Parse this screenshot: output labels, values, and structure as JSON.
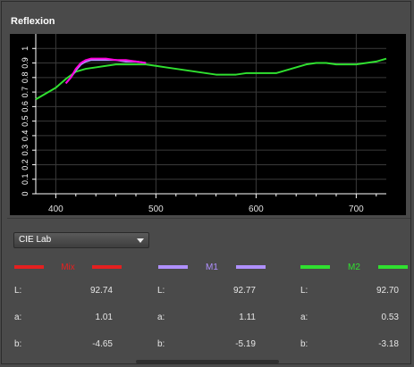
{
  "panel": {
    "title": "Reflexion"
  },
  "chart_data": {
    "type": "line",
    "title": "",
    "xlabel": "",
    "ylabel": "",
    "xlim": [
      380,
      730
    ],
    "ylim": [
      0,
      1.1
    ],
    "x_ticks": [
      400,
      500,
      600,
      700
    ],
    "y_ticks": [
      0,
      0.1,
      0.2,
      0.3,
      0.4,
      0.5,
      0.6,
      0.7,
      0.8,
      0.9,
      1
    ],
    "y_tick_labels": [
      "0",
      "0.1",
      "0.2",
      "0.3",
      "0.4",
      "0.5",
      "0.6",
      "0.7",
      "0.8",
      "0.9",
      "1"
    ],
    "grid": true,
    "series": [
      {
        "name": "Mix",
        "color": "#ff00dd",
        "x": [
          410,
          415,
          420,
          425,
          430,
          435,
          440,
          450,
          460,
          470,
          480,
          490
        ],
        "y": [
          0.76,
          0.8,
          0.86,
          0.9,
          0.92,
          0.93,
          0.93,
          0.93,
          0.92,
          0.92,
          0.91,
          0.9
        ]
      },
      {
        "name": "M1",
        "color": "#b090ff",
        "x": [
          410,
          415,
          420,
          425,
          430,
          435,
          440,
          450,
          460,
          470,
          480,
          490
        ],
        "y": [
          0.76,
          0.8,
          0.85,
          0.89,
          0.91,
          0.92,
          0.92,
          0.92,
          0.92,
          0.91,
          0.91,
          0.9
        ]
      },
      {
        "name": "M2",
        "color": "#30e030",
        "x": [
          380,
          390,
          400,
          410,
          420,
          430,
          440,
          450,
          460,
          470,
          480,
          490,
          500,
          510,
          520,
          530,
          540,
          550,
          560,
          570,
          580,
          590,
          600,
          610,
          620,
          630,
          640,
          650,
          660,
          670,
          680,
          690,
          700,
          710,
          720,
          730
        ],
        "y": [
          0.65,
          0.69,
          0.73,
          0.79,
          0.84,
          0.86,
          0.87,
          0.88,
          0.89,
          0.89,
          0.89,
          0.89,
          0.88,
          0.87,
          0.86,
          0.85,
          0.84,
          0.83,
          0.82,
          0.82,
          0.82,
          0.83,
          0.83,
          0.83,
          0.83,
          0.85,
          0.87,
          0.89,
          0.9,
          0.9,
          0.89,
          0.89,
          0.89,
          0.9,
          0.91,
          0.93
        ]
      }
    ]
  },
  "colorspace_select": {
    "value": "CIE Lab"
  },
  "samples": [
    {
      "name": "Mix",
      "color": "#e52020",
      "L": "92.74",
      "a": "1.01",
      "b": "-4.65"
    },
    {
      "name": "M1",
      "color": "#b090ff",
      "L": "92.77",
      "a": "1.11",
      "b": "-5.19"
    },
    {
      "name": "M2",
      "color": "#30e030",
      "L": "92.70",
      "a": "0.53",
      "b": "-3.18"
    }
  ],
  "labels": {
    "L": "L:",
    "a": "a:",
    "b": "b:"
  }
}
